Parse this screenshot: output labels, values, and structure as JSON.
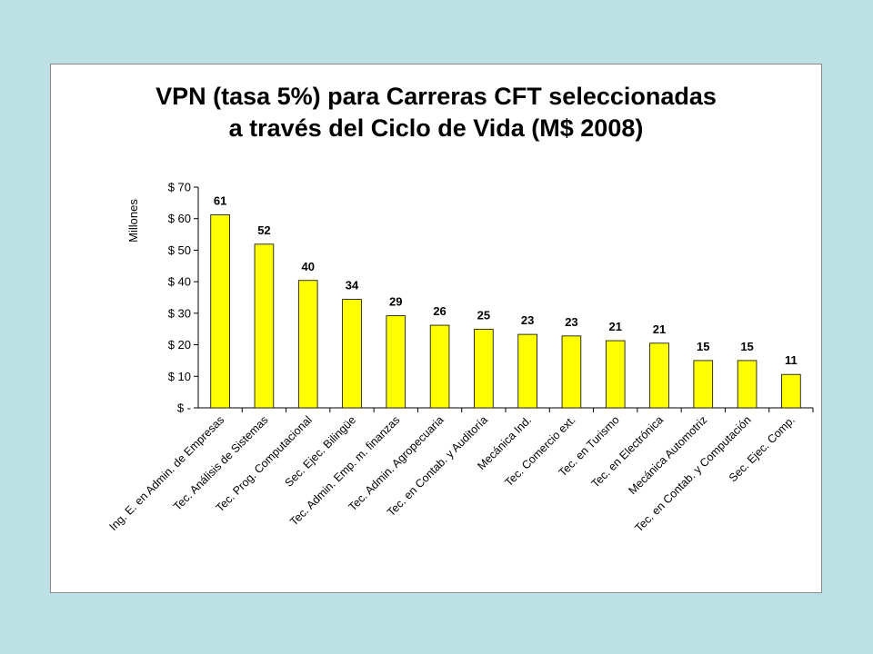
{
  "chart_data": {
    "type": "bar",
    "title_lines": [
      "VPN (tasa 5%) para Carreras CFT seleccionadas",
      "a través del Ciclo de Vida (M$ 2008)"
    ],
    "ylabel": "Millones",
    "ylim": [
      0,
      70
    ],
    "yticks": [
      0,
      10,
      20,
      30,
      40,
      50,
      60,
      70
    ],
    "ytick_labels": [
      "$ -",
      "$ 10",
      "$ 20",
      "$ 30",
      "$ 40",
      "$ 50",
      "$ 60",
      "$ 70"
    ],
    "categories": [
      "Ing. E. en Admin. de Empresas",
      "Tec. Análisis de Sistemas",
      "Tec. Prog. Computacional",
      "Sec. Ejec. Bilingüe",
      "Tec. Admin. Emp. m. finanzas",
      "Tec. Admin. Agropecuaria",
      "Tec. en Contab. y Auditoría",
      "Mecánica Ind.",
      "Tec. Comercio ext.",
      "Tec. en Turismo",
      "Tec. en Electrónica",
      "Mecánica Automotriz",
      "Tec. en Contab. y Computación",
      "Sec. Ejec. Comp."
    ],
    "values": [
      61.2,
      51.9,
      40.4,
      34.4,
      29.2,
      26.2,
      24.9,
      23.3,
      22.8,
      21.3,
      20.5,
      15.0,
      15.0,
      10.6
    ],
    "data_labels": [
      "61",
      "52",
      "40",
      "34",
      "29",
      "26",
      "25",
      "23",
      "23",
      "21",
      "21",
      "15",
      "15",
      "11"
    ],
    "bar_color": "#ffff00",
    "bar_edge_color": "#000000",
    "grid": false,
    "legend": "none"
  }
}
